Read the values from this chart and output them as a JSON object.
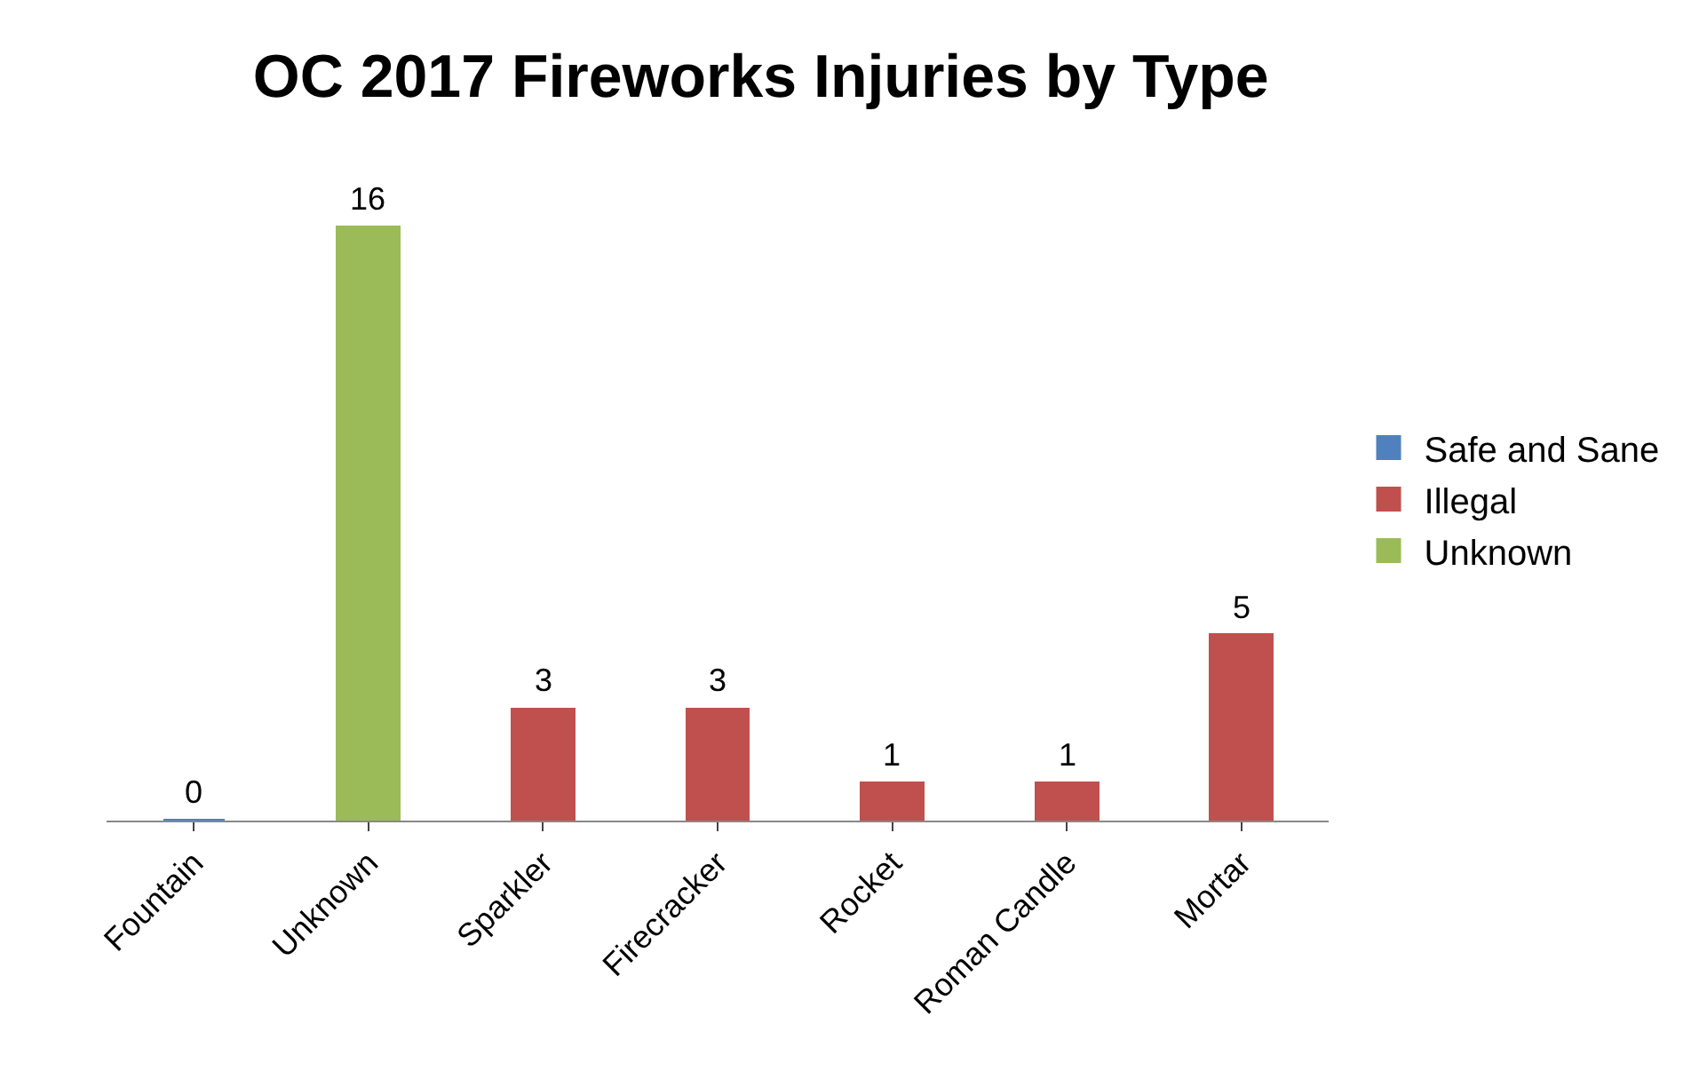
{
  "chart_data": {
    "type": "bar",
    "title": "OC 2017 Fireworks Injuries by Type",
    "categories": [
      "Fountain",
      "Unknown",
      "Sparkler",
      "Firecracker",
      "Rocket",
      "Roman Candle",
      "Mortar"
    ],
    "series": [
      {
        "name": "Safe and Sane",
        "color": "#4f81bd",
        "values": [
          0,
          null,
          null,
          null,
          null,
          null,
          null
        ]
      },
      {
        "name": "Illegal",
        "color": "#c0504d",
        "values": [
          null,
          null,
          3,
          3,
          1,
          1,
          5
        ]
      },
      {
        "name": "Unknown",
        "color": "#9bbb59",
        "values": [
          null,
          16,
          null,
          null,
          null,
          null,
          null
        ]
      }
    ],
    "stacked": true,
    "data_labels": true,
    "legend": "right",
    "tick_labels": "x"
  }
}
